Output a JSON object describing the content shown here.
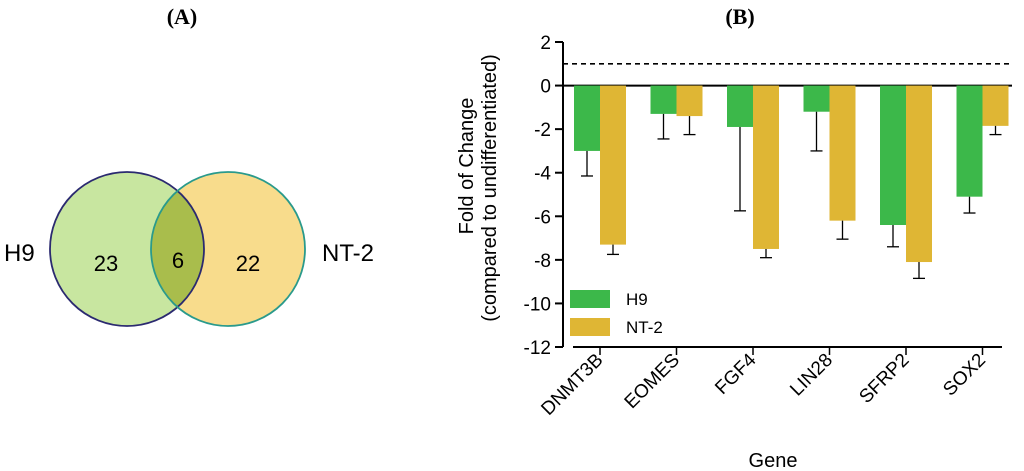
{
  "panel_a": {
    "label": "(A)",
    "left_set": {
      "name": "H9",
      "count": "23",
      "fill": "#c8e6a0",
      "stroke": "#2b2a70"
    },
    "right_set": {
      "name": "NT-2",
      "count": "22",
      "fill": "#f8dc8c",
      "stroke": "#2a9a8c"
    },
    "overlap": {
      "count": "6",
      "fill": "#a9bd4c"
    }
  },
  "panel_b": {
    "label": "(B)"
  },
  "chart_data": {
    "type": "bar",
    "categories": [
      "DNMT3B",
      "EOMES",
      "FGF4",
      "LIN28",
      "SFRP2",
      "SOX2"
    ],
    "series": [
      {
        "name": "H9",
        "color": "#3cb84a",
        "values": [
          -3.0,
          -1.3,
          -1.9,
          -1.2,
          -6.4,
          -5.1
        ],
        "errors": [
          1.15,
          1.15,
          3.85,
          1.8,
          1.0,
          0.75
        ]
      },
      {
        "name": "NT-2",
        "color": "#dfb634",
        "values": [
          -7.3,
          -1.4,
          -7.5,
          -6.2,
          -8.1,
          -1.85
        ],
        "errors": [
          0.45,
          0.85,
          0.4,
          0.85,
          0.75,
          0.4
        ]
      }
    ],
    "xlabel": "Gene",
    "ylabel_line1": "Fold of Change",
    "ylabel_line2": "(compared to undifferentiated)",
    "ylim": [
      -12,
      2
    ],
    "yticks": [
      "2",
      "0",
      "-2",
      "-4",
      "-6",
      "-8",
      "-10",
      "-12"
    ],
    "reference_line": 1,
    "legend_position": "bottom-left"
  }
}
